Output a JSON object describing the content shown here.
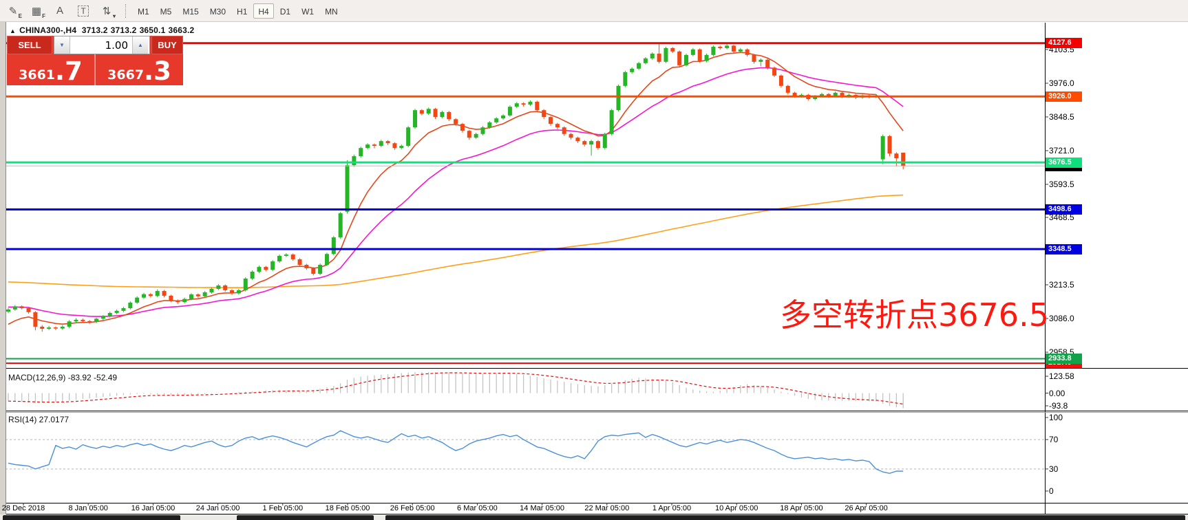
{
  "toolbar": {
    "icons": [
      {
        "name": "channel-tool-icon",
        "glyph": "✎",
        "sub": "E",
        "boxed": false
      },
      {
        "name": "fibonacci-tool-icon",
        "glyph": "▦",
        "sub": "F",
        "boxed": false
      },
      {
        "name": "text-tool-icon",
        "glyph": "A",
        "sub": "",
        "boxed": false
      },
      {
        "name": "label-tool-icon",
        "glyph": "T",
        "sub": "",
        "boxed": true
      },
      {
        "name": "arrows-tool-icon",
        "glyph": "⇅",
        "sub": "▾",
        "boxed": false
      }
    ],
    "timeframes": [
      {
        "label": "M1"
      },
      {
        "label": "M5"
      },
      {
        "label": "M15"
      },
      {
        "label": "M30"
      },
      {
        "label": "H1"
      },
      {
        "label": "H4"
      },
      {
        "label": "D1"
      },
      {
        "label": "W1"
      },
      {
        "label": "MN"
      }
    ],
    "active_timeframe": "H4"
  },
  "header": {
    "symbol_period": "CHINA300-,H4",
    "open": "3713.2",
    "high": "3713.2",
    "low": "3650.1",
    "close": "3663.2"
  },
  "trade_panel": {
    "sell_label": "SELL",
    "buy_label": "BUY",
    "quantity": "1.00",
    "sell_price": "3661.7",
    "buy_price": "3667.3",
    "panel_color": "#e6392c",
    "button_color": "#c9281c"
  },
  "chart": {
    "annotation": "多空转折点3676.5",
    "annotation_color": "#fb1a10"
  },
  "price_axis": {
    "ticks": [
      "4103.5",
      "3976.0",
      "3848.5",
      "3721.0",
      "3593.5",
      "3468.5",
      "3213.5",
      "3086.0",
      "2958.5"
    ],
    "badges": [
      {
        "value": "3663.2",
        "color": "#000000"
      },
      {
        "value": "4127.6",
        "color": "#f50000"
      },
      {
        "value": "3926.0",
        "color": "#ff4b00"
      },
      {
        "value": "3676.5",
        "color": "#10e07c"
      },
      {
        "value": "3498.6",
        "color": "#0000e1"
      },
      {
        "value": "3348.5",
        "color": "#0000e1"
      },
      {
        "value": "2917.0",
        "color": "#ef1010"
      },
      {
        "value": "2933.8",
        "color": "#13a14a"
      }
    ]
  },
  "indicators": {
    "macd": {
      "label": "MACD(12,26,9) -83.92 -52.49",
      "scale": [
        "123.58",
        "0.00",
        "-93.8"
      ],
      "histogram_color": "#c4c4c4",
      "signal_color": "#e01010"
    },
    "rsi": {
      "label": "RSI(14) 27.0177",
      "scale": [
        "100",
        "70",
        "30",
        "0"
      ],
      "line_color": "#4a90d9",
      "levels": [
        70,
        30
      ]
    }
  },
  "time_axis": {
    "labels": [
      "28 Dec 2018",
      "8 Jan 05:00",
      "16 Jan 05:00",
      "24 Jan 05:00",
      "1 Feb 05:00",
      "18 Feb 05:00",
      "26 Feb 05:00",
      "6 Mar 05:00",
      "14 Mar 05:00",
      "22 Mar 05:00",
      "1 Apr 05:00",
      "10 Apr 05:00",
      "18 Apr 05:00",
      "26 Apr 05:00"
    ]
  },
  "chart_data": {
    "type": "candlestick",
    "title": "CHINA300- H4",
    "price_range": [
      2900,
      4190
    ],
    "candle_colors": {
      "up": "#26b526",
      "down": "#f24713"
    },
    "hlines": [
      {
        "price": 4127.6,
        "color": "#f50000",
        "width": 3
      },
      {
        "price": 3926.0,
        "color": "#ff4b00",
        "width": 3
      },
      {
        "price": 3676.5,
        "color": "#10e07c",
        "width": 3
      },
      {
        "price": 3663.2,
        "color": "#bbbbbb",
        "width": 1
      },
      {
        "price": 3498.6,
        "color": "#0000e1",
        "width": 3
      },
      {
        "price": 3348.5,
        "color": "#0000e1",
        "width": 3
      },
      {
        "price": 2933.8,
        "color": "#13a14a",
        "width": 2
      },
      {
        "price": 2917.0,
        "color": "#ef1010",
        "width": 2
      }
    ],
    "moving_averages": [
      {
        "name": "ma-slow",
        "color": "#ffa018",
        "alpha": 0.008,
        "seed": 3225
      },
      {
        "name": "ma-mid",
        "color": "#f715cf",
        "alpha": 0.08,
        "seed": 3130
      },
      {
        "name": "ma-fast",
        "color": "#e1491c",
        "alpha": 0.2,
        "seed": 3050
      }
    ],
    "ohlc": [
      [
        3112,
        3126,
        3106,
        3120
      ],
      [
        3120,
        3137,
        3115,
        3132
      ],
      [
        3132,
        3136,
        3120,
        3125
      ],
      [
        3125,
        3129,
        3104,
        3110
      ],
      [
        3110,
        3114,
        3041,
        3055
      ],
      [
        3055,
        3061,
        3036,
        3047
      ],
      [
        3047,
        3058,
        3042,
        3052
      ],
      [
        3052,
        3056,
        3042,
        3048
      ],
      [
        3048,
        3061,
        3043,
        3055
      ],
      [
        3055,
        3080,
        3050,
        3075
      ],
      [
        3075,
        3087,
        3070,
        3081
      ],
      [
        3081,
        3086,
        3070,
        3076
      ],
      [
        3076,
        3080,
        3066,
        3073
      ],
      [
        3073,
        3090,
        3068,
        3085
      ],
      [
        3085,
        3099,
        3080,
        3094
      ],
      [
        3094,
        3112,
        3089,
        3107
      ],
      [
        3107,
        3120,
        3102,
        3115
      ],
      [
        3115,
        3130,
        3110,
        3125
      ],
      [
        3125,
        3151,
        3120,
        3146
      ],
      [
        3146,
        3170,
        3141,
        3165
      ],
      [
        3165,
        3183,
        3160,
        3178
      ],
      [
        3178,
        3182,
        3165,
        3171
      ],
      [
        3171,
        3196,
        3166,
        3190
      ],
      [
        3190,
        3194,
        3166,
        3172
      ],
      [
        3172,
        3176,
        3148,
        3154
      ],
      [
        3154,
        3158,
        3141,
        3148
      ],
      [
        3148,
        3165,
        3143,
        3160
      ],
      [
        3160,
        3182,
        3155,
        3177
      ],
      [
        3177,
        3181,
        3164,
        3170
      ],
      [
        3170,
        3190,
        3165,
        3185
      ],
      [
        3185,
        3203,
        3180,
        3198
      ],
      [
        3198,
        3216,
        3193,
        3211
      ],
      [
        3211,
        3215,
        3187,
        3193
      ],
      [
        3193,
        3197,
        3175,
        3181
      ],
      [
        3181,
        3198,
        3176,
        3193
      ],
      [
        3193,
        3242,
        3188,
        3237
      ],
      [
        3237,
        3268,
        3232,
        3263
      ],
      [
        3263,
        3286,
        3258,
        3281
      ],
      [
        3281,
        3285,
        3264,
        3270
      ],
      [
        3270,
        3307,
        3265,
        3302
      ],
      [
        3302,
        3328,
        3297,
        3323
      ],
      [
        3323,
        3333,
        3318,
        3328
      ],
      [
        3328,
        3332,
        3304,
        3310
      ],
      [
        3310,
        3314,
        3283,
        3289
      ],
      [
        3289,
        3293,
        3270,
        3276
      ],
      [
        3276,
        3280,
        3249,
        3255
      ],
      [
        3255,
        3294,
        3250,
        3289
      ],
      [
        3289,
        3335,
        3284,
        3330
      ],
      [
        3330,
        3398,
        3325,
        3393
      ],
      [
        3393,
        3489,
        3388,
        3484
      ],
      [
        3490,
        3685,
        3483,
        3666
      ],
      [
        3666,
        3706,
        3660,
        3700
      ],
      [
        3700,
        3736,
        3695,
        3731
      ],
      [
        3731,
        3749,
        3726,
        3744
      ],
      [
        3744,
        3748,
        3730,
        3739
      ],
      [
        3739,
        3762,
        3734,
        3757
      ],
      [
        3757,
        3761,
        3742,
        3749
      ],
      [
        3749,
        3753,
        3724,
        3731
      ],
      [
        3731,
        3744,
        3726,
        3739
      ],
      [
        3739,
        3814,
        3734,
        3809
      ],
      [
        3809,
        3879,
        3804,
        3874
      ],
      [
        3874,
        3878,
        3855,
        3861
      ],
      [
        3861,
        3884,
        3856,
        3879
      ],
      [
        3879,
        3883,
        3841,
        3848
      ],
      [
        3848,
        3872,
        3843,
        3867
      ],
      [
        3867,
        3871,
        3833,
        3840
      ],
      [
        3840,
        3844,
        3815,
        3822
      ],
      [
        3822,
        3826,
        3789,
        3796
      ],
      [
        3796,
        3800,
        3762,
        3770
      ],
      [
        3770,
        3789,
        3765,
        3784
      ],
      [
        3784,
        3814,
        3779,
        3809
      ],
      [
        3809,
        3833,
        3804,
        3828
      ],
      [
        3828,
        3848,
        3823,
        3843
      ],
      [
        3843,
        3859,
        3838,
        3854
      ],
      [
        3854,
        3892,
        3849,
        3887
      ],
      [
        3887,
        3905,
        3882,
        3900
      ],
      [
        3900,
        3904,
        3888,
        3895
      ],
      [
        3895,
        3911,
        3890,
        3906
      ],
      [
        3906,
        3910,
        3867,
        3874
      ],
      [
        3874,
        3878,
        3841,
        3848
      ],
      [
        3848,
        3852,
        3815,
        3822
      ],
      [
        3822,
        3826,
        3802,
        3809
      ],
      [
        3809,
        3813,
        3777,
        3784
      ],
      [
        3784,
        3788,
        3763,
        3770
      ],
      [
        3770,
        3774,
        3750,
        3757
      ],
      [
        3757,
        3761,
        3737,
        3744
      ],
      [
        3744,
        3762,
        3702,
        3757
      ],
      [
        3757,
        3761,
        3724,
        3731
      ],
      [
        3731,
        3789,
        3726,
        3784
      ],
      [
        3784,
        3879,
        3779,
        3874
      ],
      [
        3874,
        3971,
        3869,
        3966
      ],
      [
        3966,
        4023,
        3961,
        4018
      ],
      [
        4018,
        4036,
        4012,
        4031
      ],
      [
        4031,
        4057,
        4026,
        4052
      ],
      [
        4052,
        4075,
        4047,
        4070
      ],
      [
        4070,
        4093,
        4064,
        4088
      ],
      [
        4088,
        4128,
        4051,
        4057
      ],
      [
        4057,
        4114,
        4052,
        4109
      ],
      [
        4109,
        4113,
        4090,
        4096
      ],
      [
        4096,
        4100,
        4038,
        4044
      ],
      [
        4044,
        4088,
        4039,
        4083
      ],
      [
        4083,
        4109,
        4078,
        4104
      ],
      [
        4104,
        4108,
        4054,
        4060
      ],
      [
        4060,
        4088,
        4055,
        4083
      ],
      [
        4083,
        4119,
        4078,
        4114
      ],
      [
        4114,
        4118,
        4103,
        4109
      ],
      [
        4109,
        4129,
        4104,
        4118
      ],
      [
        4118,
        4122,
        4090,
        4096
      ],
      [
        4096,
        4109,
        4091,
        4104
      ],
      [
        4104,
        4108,
        4077,
        4083
      ],
      [
        4083,
        4087,
        4050,
        4057
      ],
      [
        4057,
        4070,
        4040,
        4065
      ],
      [
        4065,
        4069,
        4028,
        4035
      ],
      [
        4035,
        4039,
        3999,
        4005
      ],
      [
        4005,
        4009,
        3960,
        3966
      ],
      [
        3966,
        3970,
        3934,
        3940
      ],
      [
        3940,
        3944,
        3921,
        3927
      ],
      [
        3927,
        3937,
        3922,
        3932
      ],
      [
        3932,
        3936,
        3910,
        3916
      ],
      [
        3916,
        3931,
        3911,
        3927
      ],
      [
        3927,
        3940,
        3922,
        3935
      ],
      [
        3935,
        3939,
        3921,
        3928
      ],
      [
        3928,
        3945,
        3923,
        3940
      ],
      [
        3940,
        3944,
        3920,
        3926
      ],
      [
        3926,
        3937,
        3921,
        3932
      ],
      [
        3932,
        3936,
        3916,
        3922
      ],
      [
        3922,
        3934,
        3917,
        3930
      ],
      [
        3930,
        3934,
        3919,
        3925
      ],
      [
        3925,
        3933,
        3920,
        3928
      ],
      [
        3688,
        3782,
        3670,
        3776
      ],
      [
        3776,
        3780,
        3700,
        3710
      ],
      [
        3710,
        3715,
        3662,
        3692
      ],
      [
        3713.2,
        3713.2,
        3650.1,
        3663.2
      ]
    ],
    "macd_histogram": [
      -45,
      -48,
      -50,
      -52,
      -55,
      -54,
      -52,
      -50,
      -46,
      -42,
      -38,
      -33,
      -30,
      -26,
      -22,
      -18,
      -15,
      -12,
      -8,
      -6,
      -5,
      -7,
      -9,
      -11,
      -12,
      -11,
      -10,
      -9,
      -8,
      -6,
      -4,
      -2,
      0,
      3,
      6,
      8,
      10,
      12,
      15,
      17,
      18,
      16,
      14,
      13,
      12,
      18,
      25,
      32,
      40,
      55,
      75,
      85,
      92,
      97,
      100,
      103,
      105,
      108,
      112,
      115,
      118,
      120,
      122,
      121,
      119,
      117,
      114,
      111,
      109,
      108,
      108,
      110,
      112,
      113,
      111,
      107,
      102,
      96,
      90,
      83,
      76,
      70,
      63,
      56,
      50,
      45,
      41,
      38,
      44,
      54,
      63,
      72,
      80,
      86,
      82,
      79,
      75,
      70,
      60,
      45,
      30,
      20,
      14,
      10,
      8,
      14,
      24,
      34,
      44,
      50,
      45,
      38,
      30,
      20,
      8,
      -5,
      -15,
      -25,
      -32,
      -38,
      -40,
      -42,
      -43,
      -44,
      -44,
      -45,
      -45,
      -46,
      -47,
      -60,
      -72,
      -80,
      -84
    ],
    "rsi": [
      38,
      36,
      35,
      34,
      30,
      33,
      36,
      62,
      58,
      60,
      57,
      63,
      60,
      58,
      61,
      59,
      62,
      60,
      63,
      65,
      62,
      64,
      60,
      57,
      55,
      58,
      62,
      60,
      63,
      66,
      68,
      63,
      60,
      62,
      68,
      72,
      74,
      70,
      73,
      75,
      73,
      70,
      66,
      63,
      60,
      65,
      70,
      74,
      76,
      82,
      78,
      74,
      72,
      74,
      71,
      68,
      66,
      72,
      78,
      74,
      76,
      72,
      74,
      70,
      66,
      60,
      55,
      58,
      64,
      68,
      70,
      72,
      75,
      77,
      74,
      76,
      70,
      65,
      60,
      58,
      54,
      50,
      47,
      45,
      48,
      44,
      55,
      68,
      74,
      76,
      75,
      77,
      78,
      79,
      73,
      77,
      74,
      70,
      66,
      62,
      60,
      63,
      66,
      64,
      67,
      69,
      66,
      68,
      70,
      69,
      66,
      62,
      58,
      55,
      50,
      46,
      44,
      45,
      46,
      44,
      45,
      43,
      44,
      42,
      43,
      41,
      42,
      40,
      30,
      26,
      24,
      27,
      27
    ]
  }
}
